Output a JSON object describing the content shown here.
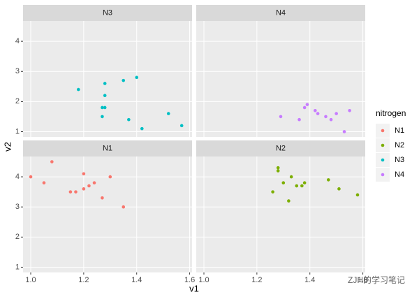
{
  "chart_data": {
    "type": "scatter",
    "x_label": "v1",
    "y_label": "v2",
    "legend_title": "nitrogen",
    "watermark": "ZJH的学习笔记",
    "xlim": [
      0.971,
      1.609
    ],
    "ylim": [
      0.825,
      4.675
    ],
    "xticks": [
      {
        "value": 1.0,
        "label": "1.0"
      },
      {
        "value": 1.2,
        "label": "1.2"
      },
      {
        "value": 1.4,
        "label": "1.4"
      },
      {
        "value": 1.6,
        "label": "1.6"
      }
    ],
    "yticks": [
      1,
      2,
      3,
      4
    ],
    "grid": true,
    "series": [
      {
        "name": "N1",
        "color": "#F8766D",
        "x": [
          1.0,
          1.05,
          1.08,
          1.15,
          1.17,
          1.2,
          1.2,
          1.22,
          1.24,
          1.27,
          1.3,
          1.35
        ],
        "values": [
          4.0,
          3.8,
          4.5,
          3.5,
          3.5,
          4.1,
          3.6,
          3.7,
          3.8,
          3.3,
          4.0,
          3.0
        ]
      },
      {
        "name": "N2",
        "color": "#7CAE00",
        "x": [
          1.26,
          1.28,
          1.28,
          1.3,
          1.32,
          1.33,
          1.35,
          1.37,
          1.38,
          1.47,
          1.51,
          1.58
        ],
        "values": [
          3.5,
          4.3,
          4.2,
          3.8,
          3.2,
          4.0,
          3.7,
          3.7,
          3.8,
          3.9,
          3.6,
          3.4
        ]
      },
      {
        "name": "N3",
        "color": "#00BFC4",
        "x": [
          1.18,
          1.28,
          1.28,
          1.27,
          1.28,
          1.27,
          1.35,
          1.4,
          1.37,
          1.42,
          1.52,
          1.57
        ],
        "values": [
          2.4,
          2.6,
          2.2,
          1.8,
          1.8,
          1.5,
          2.7,
          2.8,
          1.4,
          1.1,
          1.6,
          1.2
        ]
      },
      {
        "name": "N4",
        "color": "#C77CFF",
        "x": [
          1.29,
          1.36,
          1.38,
          1.39,
          1.42,
          1.43,
          1.46,
          1.48,
          1.5,
          1.55,
          1.53
        ],
        "values": [
          1.5,
          1.4,
          1.8,
          1.9,
          1.7,
          1.6,
          1.5,
          1.4,
          1.6,
          1.7,
          1.0
        ]
      }
    ]
  }
}
